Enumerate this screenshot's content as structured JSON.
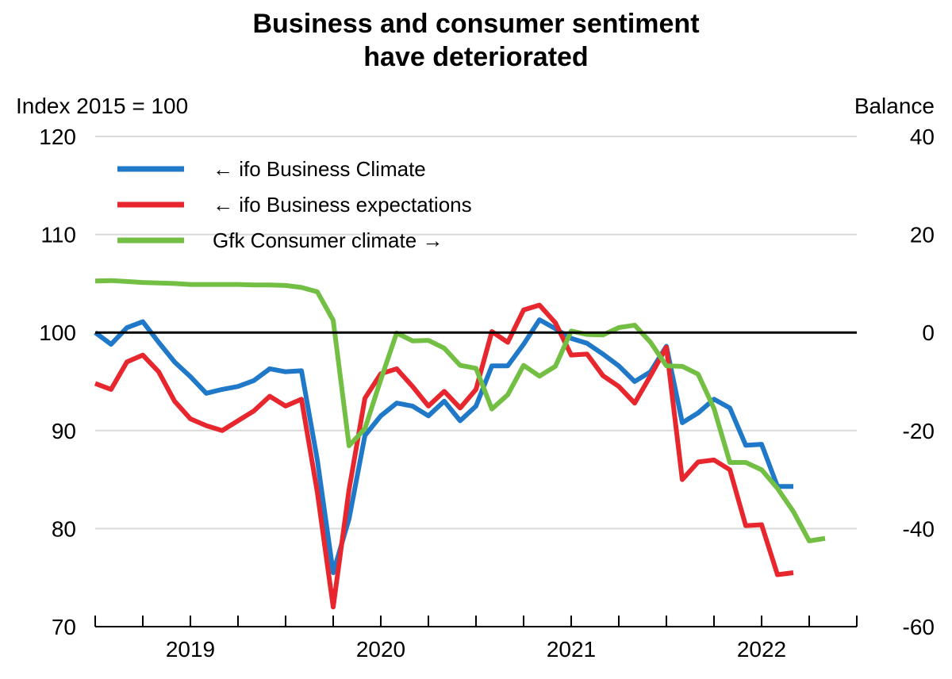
{
  "chart_data": {
    "type": "line",
    "title_line1": "Business and consumer sentiment",
    "title_line2": "have deteriorated",
    "ylabel_left": "Index 2015 = 100",
    "ylabel_right": "Balance",
    "ylim_left": [
      70,
      120
    ],
    "ylim_right": [
      -60,
      40
    ],
    "yticks_left": [
      120,
      110,
      100,
      90,
      80,
      70
    ],
    "yticks_right": [
      40,
      20,
      0,
      -20,
      -40,
      -60
    ],
    "x_start": "2018-07",
    "xlim_months": [
      0,
      48
    ],
    "x_tick_labels": [
      {
        "label": "2019",
        "month": 12
      },
      {
        "label": "2020",
        "month": 24
      },
      {
        "label": "2021",
        "month": 36
      },
      {
        "label": "2022",
        "month": 48
      }
    ],
    "reference_line": {
      "axis": "right",
      "value": 0
    },
    "grid": true,
    "legend_position": "top-left",
    "series": [
      {
        "name": "← ifo Business Climate",
        "axis": "left",
        "color": "#1f78c8",
        "values": [
          100,
          98.8,
          100.5,
          101.1,
          99,
          97,
          95.5,
          93.8,
          94.2,
          94.5,
          95.1,
          96.3,
          96,
          96.1,
          87,
          75.5,
          81,
          89.5,
          91.5,
          92.8,
          92.5,
          91.5,
          93,
          91,
          92.5,
          96.6,
          96.6,
          98.8,
          101.3,
          100.4,
          99.4,
          98.9,
          97.8,
          96.6,
          95,
          96,
          98.6,
          90.8,
          91.8,
          93.2,
          92.3,
          88.5,
          88.6,
          84.3,
          84.3
        ]
      },
      {
        "name": "← ifo Business expectations",
        "axis": "left",
        "color": "#e8262e",
        "values": [
          94.8,
          94.2,
          97,
          97.7,
          96,
          93,
          91.2,
          90.5,
          90,
          91,
          92,
          93.5,
          92.5,
          93.2,
          83.7,
          72,
          84,
          93.3,
          95.8,
          96.3,
          94.5,
          92.5,
          94,
          92.3,
          94.2,
          100.1,
          99,
          102.3,
          102.8,
          101,
          97.7,
          97.8,
          95.6,
          94.5,
          92.8,
          95.6,
          98.5,
          85,
          86.8,
          87,
          86,
          80.3,
          80.4,
          75.3,
          75.5
        ]
      },
      {
        "name": "Gfk Consumer climate →",
        "axis": "right",
        "color": "#72bf44",
        "values": [
          10.5,
          10.6,
          10.4,
          10.2,
          10.1,
          10,
          9.8,
          9.8,
          9.8,
          9.8,
          9.7,
          9.7,
          9.6,
          9.2,
          8.3,
          2.5,
          -23.1,
          -19.6,
          -9.6,
          -0.1,
          -1.7,
          -1.6,
          -3.2,
          -6.7,
          -7.3,
          -15.6,
          -12.7,
          -6.7,
          -8.9,
          -6.9,
          0.3,
          -0.4,
          -0.5,
          1,
          1.5,
          -2,
          -6.8,
          -6.9,
          -8.5,
          -15.5,
          -26.5,
          -26.5,
          -28,
          -31.8,
          -36.5,
          -42.5,
          -42
        ]
      }
    ]
  }
}
